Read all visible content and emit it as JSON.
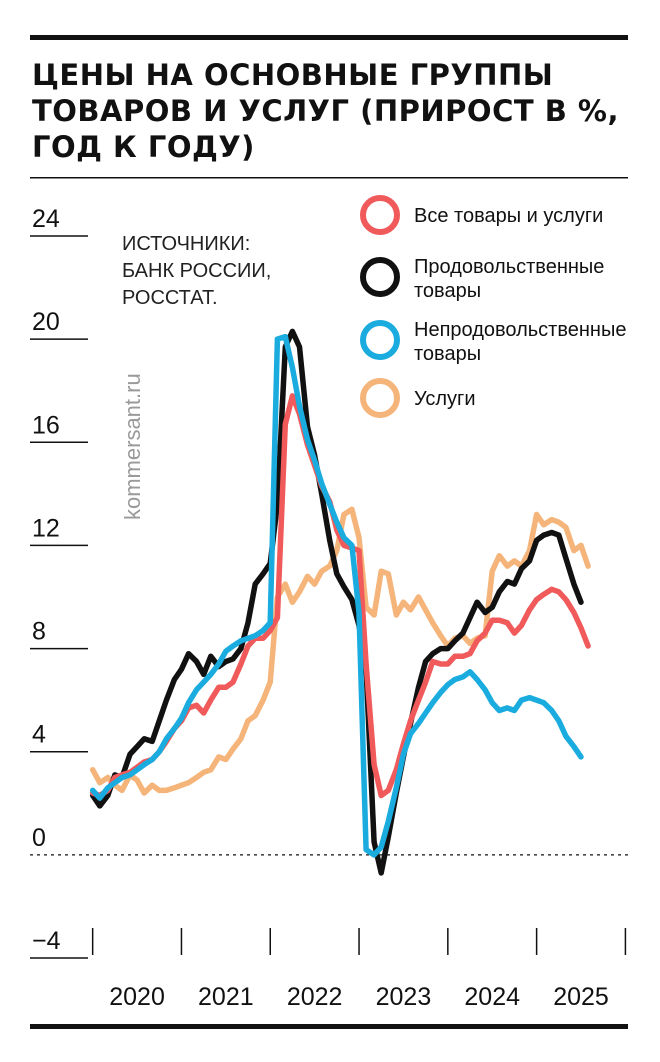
{
  "chart_data": {
    "type": "line",
    "title": "ЦЕНЫ НА ОСНОВНЫЕ ГРУППЫ ТОВАРОВ И УСЛУГ (ПРИРОСТ В %, ГОД К ГОДУ)",
    "title_lines": [
      "ЦЕНЫ НА ОСНОВНЫЕ ГРУППЫ",
      "ТОВАРОВ И УСЛУГ (ПРИРОСТ В %,",
      "ГОД К ГОДУ)"
    ],
    "source_lines": [
      "ИСТОЧНИКИ:",
      "БАНК РОССИИ,",
      "РОССТАТ."
    ],
    "watermark": "kommersant.ru",
    "ylim": [
      -4,
      24
    ],
    "yticks": [
      24,
      20,
      16,
      12,
      8,
      4,
      0,
      -4
    ],
    "ytick_labels": [
      "24",
      "20",
      "16",
      "12",
      "8",
      "4",
      "0",
      "−4"
    ],
    "xticks": [
      2020,
      2021,
      2022,
      2023,
      2024,
      2025,
      2026
    ],
    "xtick_labels": [
      "2020",
      "2021",
      "2022",
      "2023",
      "2024",
      "2025"
    ],
    "series": [
      {
        "name": "Услуги",
        "color": "#f5b57a",
        "points": [
          [
            2020.0,
            3.3
          ],
          [
            2020.08,
            2.8
          ],
          [
            2020.17,
            3.0
          ],
          [
            2020.25,
            2.7
          ],
          [
            2020.33,
            2.5
          ],
          [
            2020.42,
            3.1
          ],
          [
            2020.5,
            2.9
          ],
          [
            2020.58,
            2.4
          ],
          [
            2020.67,
            2.7
          ],
          [
            2020.75,
            2.5
          ],
          [
            2020.83,
            2.5
          ],
          [
            2020.92,
            2.6
          ],
          [
            2021.0,
            2.7
          ],
          [
            2021.08,
            2.8
          ],
          [
            2021.17,
            3.0
          ],
          [
            2021.25,
            3.2
          ],
          [
            2021.33,
            3.3
          ],
          [
            2021.42,
            3.8
          ],
          [
            2021.5,
            3.7
          ],
          [
            2021.58,
            4.1
          ],
          [
            2021.67,
            4.5
          ],
          [
            2021.75,
            5.2
          ],
          [
            2021.83,
            5.4
          ],
          [
            2021.92,
            6.0
          ],
          [
            2022.0,
            6.7
          ],
          [
            2022.08,
            10.0
          ],
          [
            2022.17,
            10.5
          ],
          [
            2022.25,
            9.8
          ],
          [
            2022.33,
            10.2
          ],
          [
            2022.42,
            10.8
          ],
          [
            2022.5,
            10.5
          ],
          [
            2022.58,
            11.0
          ],
          [
            2022.67,
            11.2
          ],
          [
            2022.75,
            11.8
          ],
          [
            2022.83,
            13.2
          ],
          [
            2022.92,
            13.4
          ],
          [
            2023.0,
            12.3
          ],
          [
            2023.08,
            9.6
          ],
          [
            2023.17,
            9.3
          ],
          [
            2023.25,
            11.0
          ],
          [
            2023.33,
            10.9
          ],
          [
            2023.42,
            9.3
          ],
          [
            2023.5,
            9.8
          ],
          [
            2023.58,
            9.5
          ],
          [
            2023.67,
            10.0
          ],
          [
            2023.75,
            9.5
          ],
          [
            2023.83,
            9.0
          ],
          [
            2023.92,
            8.5
          ],
          [
            2024.0,
            8.1
          ],
          [
            2024.08,
            8.4
          ],
          [
            2024.17,
            8.5
          ],
          [
            2024.25,
            8.2
          ],
          [
            2024.33,
            8.4
          ],
          [
            2024.42,
            8.5
          ],
          [
            2024.5,
            11.0
          ],
          [
            2024.58,
            11.6
          ],
          [
            2024.67,
            11.2
          ],
          [
            2024.75,
            11.4
          ],
          [
            2024.83,
            11.2
          ],
          [
            2024.92,
            11.8
          ],
          [
            2025.0,
            13.2
          ],
          [
            2025.08,
            12.8
          ],
          [
            2025.17,
            13.0
          ],
          [
            2025.25,
            12.9
          ],
          [
            2025.33,
            12.7
          ],
          [
            2025.42,
            11.8
          ],
          [
            2025.5,
            12.0
          ],
          [
            2025.58,
            11.2
          ]
        ]
      },
      {
        "name": "Продовольственные товары",
        "color": "#111111",
        "points": [
          [
            2020.0,
            2.3
          ],
          [
            2020.08,
            1.9
          ],
          [
            2020.17,
            2.3
          ],
          [
            2020.25,
            3.1
          ],
          [
            2020.33,
            3.0
          ],
          [
            2020.42,
            3.9
          ],
          [
            2020.5,
            4.2
          ],
          [
            2020.58,
            4.5
          ],
          [
            2020.67,
            4.4
          ],
          [
            2020.75,
            5.2
          ],
          [
            2020.83,
            6.0
          ],
          [
            2020.92,
            6.8
          ],
          [
            2021.0,
            7.2
          ],
          [
            2021.08,
            7.8
          ],
          [
            2021.17,
            7.5
          ],
          [
            2021.25,
            7.0
          ],
          [
            2021.33,
            7.7
          ],
          [
            2021.42,
            7.3
          ],
          [
            2021.5,
            7.5
          ],
          [
            2021.58,
            7.6
          ],
          [
            2021.67,
            8.0
          ],
          [
            2021.75,
            9.0
          ],
          [
            2021.83,
            10.5
          ],
          [
            2021.92,
            10.9
          ],
          [
            2022.0,
            11.3
          ],
          [
            2022.08,
            13.6
          ],
          [
            2022.17,
            19.7
          ],
          [
            2022.25,
            20.3
          ],
          [
            2022.33,
            19.7
          ],
          [
            2022.42,
            16.6
          ],
          [
            2022.5,
            15.5
          ],
          [
            2022.58,
            14.0
          ],
          [
            2022.67,
            12.2
          ],
          [
            2022.75,
            10.9
          ],
          [
            2022.83,
            10.4
          ],
          [
            2022.92,
            9.9
          ],
          [
            2023.0,
            8.9
          ],
          [
            2023.08,
            7.2
          ],
          [
            2023.17,
            0.5
          ],
          [
            2023.25,
            -0.7
          ],
          [
            2023.33,
            0.7
          ],
          [
            2023.42,
            2.4
          ],
          [
            2023.5,
            3.8
          ],
          [
            2023.58,
            5.1
          ],
          [
            2023.67,
            6.5
          ],
          [
            2023.75,
            7.5
          ],
          [
            2023.83,
            7.8
          ],
          [
            2023.92,
            8.0
          ],
          [
            2024.0,
            8.0
          ],
          [
            2024.08,
            8.3
          ],
          [
            2024.17,
            8.6
          ],
          [
            2024.25,
            9.2
          ],
          [
            2024.33,
            9.8
          ],
          [
            2024.42,
            9.4
          ],
          [
            2024.5,
            9.6
          ],
          [
            2024.58,
            10.2
          ],
          [
            2024.67,
            10.6
          ],
          [
            2024.75,
            10.5
          ],
          [
            2024.83,
            11.1
          ],
          [
            2024.92,
            11.4
          ],
          [
            2025.0,
            12.2
          ],
          [
            2025.08,
            12.4
          ],
          [
            2025.17,
            12.5
          ],
          [
            2025.25,
            12.4
          ],
          [
            2025.33,
            11.5
          ],
          [
            2025.42,
            10.5
          ],
          [
            2025.5,
            9.8
          ]
        ]
      },
      {
        "name": "Все товары и услуги",
        "color": "#f05a5a",
        "points": [
          [
            2020.0,
            2.4
          ],
          [
            2020.08,
            2.3
          ],
          [
            2020.17,
            2.5
          ],
          [
            2020.25,
            3.0
          ],
          [
            2020.33,
            3.1
          ],
          [
            2020.42,
            3.2
          ],
          [
            2020.5,
            3.4
          ],
          [
            2020.58,
            3.6
          ],
          [
            2020.67,
            3.7
          ],
          [
            2020.75,
            4.0
          ],
          [
            2020.83,
            4.4
          ],
          [
            2020.92,
            4.9
          ],
          [
            2021.0,
            5.2
          ],
          [
            2021.08,
            5.7
          ],
          [
            2021.17,
            5.8
          ],
          [
            2021.25,
            5.5
          ],
          [
            2021.33,
            6.0
          ],
          [
            2021.42,
            6.5
          ],
          [
            2021.5,
            6.5
          ],
          [
            2021.58,
            6.7
          ],
          [
            2021.67,
            7.4
          ],
          [
            2021.75,
            8.1
          ],
          [
            2021.83,
            8.4
          ],
          [
            2021.92,
            8.4
          ],
          [
            2022.0,
            8.7
          ],
          [
            2022.08,
            9.2
          ],
          [
            2022.17,
            16.7
          ],
          [
            2022.25,
            17.8
          ],
          [
            2022.33,
            17.1
          ],
          [
            2022.42,
            15.9
          ],
          [
            2022.5,
            15.1
          ],
          [
            2022.58,
            14.3
          ],
          [
            2022.67,
            13.7
          ],
          [
            2022.75,
            12.6
          ],
          [
            2022.83,
            12.0
          ],
          [
            2022.92,
            11.9
          ],
          [
            2023.0,
            11.8
          ],
          [
            2023.08,
            7.4
          ],
          [
            2023.17,
            3.5
          ],
          [
            2023.25,
            2.3
          ],
          [
            2023.33,
            2.5
          ],
          [
            2023.42,
            3.3
          ],
          [
            2023.5,
            4.3
          ],
          [
            2023.58,
            5.2
          ],
          [
            2023.67,
            6.0
          ],
          [
            2023.75,
            6.7
          ],
          [
            2023.83,
            7.5
          ],
          [
            2023.92,
            7.4
          ],
          [
            2024.0,
            7.4
          ],
          [
            2024.08,
            7.7
          ],
          [
            2024.17,
            7.7
          ],
          [
            2024.25,
            7.8
          ],
          [
            2024.33,
            8.3
          ],
          [
            2024.42,
            8.6
          ],
          [
            2024.5,
            9.1
          ],
          [
            2024.58,
            9.1
          ],
          [
            2024.67,
            9.0
          ],
          [
            2024.75,
            8.6
          ],
          [
            2024.83,
            8.9
          ],
          [
            2024.92,
            9.5
          ],
          [
            2025.0,
            9.9
          ],
          [
            2025.08,
            10.1
          ],
          [
            2025.17,
            10.3
          ],
          [
            2025.25,
            10.2
          ],
          [
            2025.33,
            9.9
          ],
          [
            2025.42,
            9.4
          ],
          [
            2025.5,
            8.8
          ],
          [
            2025.58,
            8.1
          ]
        ]
      },
      {
        "name": "Непродовольственные товары",
        "color": "#1aabdf",
        "points": [
          [
            2020.0,
            2.5
          ],
          [
            2020.08,
            2.2
          ],
          [
            2020.17,
            2.6
          ],
          [
            2020.25,
            2.8
          ],
          [
            2020.33,
            3.0
          ],
          [
            2020.42,
            3.1
          ],
          [
            2020.5,
            3.3
          ],
          [
            2020.58,
            3.5
          ],
          [
            2020.67,
            3.7
          ],
          [
            2020.75,
            4.0
          ],
          [
            2020.83,
            4.5
          ],
          [
            2020.92,
            4.9
          ],
          [
            2021.0,
            5.3
          ],
          [
            2021.08,
            5.9
          ],
          [
            2021.17,
            6.4
          ],
          [
            2021.25,
            6.7
          ],
          [
            2021.33,
            7.0
          ],
          [
            2021.42,
            7.4
          ],
          [
            2021.5,
            7.9
          ],
          [
            2021.58,
            8.1
          ],
          [
            2021.67,
            8.3
          ],
          [
            2021.75,
            8.4
          ],
          [
            2021.83,
            8.5
          ],
          [
            2021.92,
            8.7
          ],
          [
            2022.0,
            9.0
          ],
          [
            2022.08,
            20.0
          ],
          [
            2022.17,
            20.1
          ],
          [
            2022.25,
            18.9
          ],
          [
            2022.33,
            17.4
          ],
          [
            2022.42,
            16.1
          ],
          [
            2022.5,
            15.3
          ],
          [
            2022.58,
            14.4
          ],
          [
            2022.67,
            13.6
          ],
          [
            2022.75,
            12.9
          ],
          [
            2022.83,
            12.3
          ],
          [
            2022.92,
            12.0
          ],
          [
            2023.0,
            9.4
          ],
          [
            2023.08,
            0.2
          ],
          [
            2023.17,
            0.0
          ],
          [
            2023.25,
            0.3
          ],
          [
            2023.33,
            1.3
          ],
          [
            2023.42,
            2.6
          ],
          [
            2023.5,
            3.9
          ],
          [
            2023.58,
            4.7
          ],
          [
            2023.67,
            5.1
          ],
          [
            2023.75,
            5.5
          ],
          [
            2023.83,
            5.9
          ],
          [
            2023.92,
            6.3
          ],
          [
            2024.0,
            6.6
          ],
          [
            2024.08,
            6.8
          ],
          [
            2024.17,
            6.9
          ],
          [
            2024.25,
            7.1
          ],
          [
            2024.33,
            6.8
          ],
          [
            2024.42,
            6.4
          ],
          [
            2024.5,
            5.9
          ],
          [
            2024.58,
            5.6
          ],
          [
            2024.67,
            5.7
          ],
          [
            2024.75,
            5.6
          ],
          [
            2024.83,
            6.0
          ],
          [
            2024.92,
            6.1
          ],
          [
            2025.0,
            6.0
          ],
          [
            2025.08,
            5.9
          ],
          [
            2025.17,
            5.6
          ],
          [
            2025.25,
            5.2
          ],
          [
            2025.33,
            4.6
          ],
          [
            2025.42,
            4.2
          ],
          [
            2025.5,
            3.8
          ]
        ]
      }
    ],
    "legend": [
      {
        "label_lines": [
          "Все товары и услуги"
        ],
        "color": "#f05a5a"
      },
      {
        "label_lines": [
          "Продовольственные",
          "товары"
        ],
        "color": "#111111"
      },
      {
        "label_lines": [
          "Непродовольственные",
          "товары"
        ],
        "color": "#1aabdf"
      },
      {
        "label_lines": [
          "Услуги"
        ],
        "color": "#f5b57a"
      }
    ]
  }
}
